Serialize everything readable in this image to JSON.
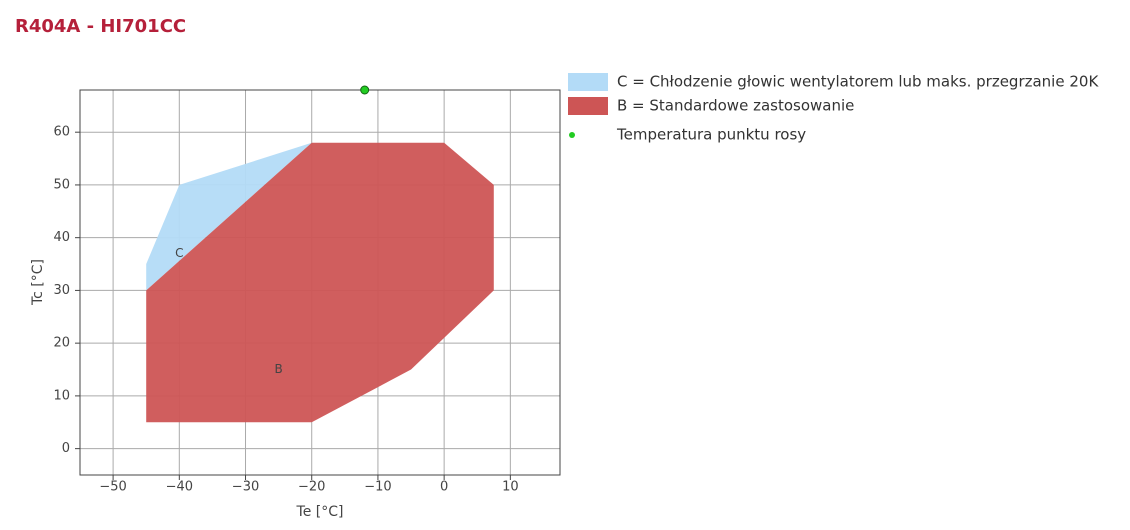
{
  "chart_data": {
    "type": "area",
    "title": "R404A - HI701CC",
    "x_label": "Te [°C]",
    "y_label": "Tc [°C]",
    "xlim": [
      -55,
      17.5
    ],
    "ylim": [
      -5,
      68
    ],
    "xticks": [
      {
        "value": -50,
        "label": "−50"
      },
      {
        "value": -40,
        "label": "−40"
      },
      {
        "value": -30,
        "label": "−30"
      },
      {
        "value": -20,
        "label": "−20"
      },
      {
        "value": -10,
        "label": "−10"
      },
      0,
      10
    ],
    "yticks": [
      0,
      10,
      20,
      30,
      40,
      50,
      60
    ],
    "grid": true,
    "legend": "right",
    "series": [
      {
        "name": "C = Chłodzenie głowic wentylatorem lub maks. przegrzanie 20K",
        "type": "area",
        "color": "#b3dbf7",
        "x": [
          -45,
          -45,
          -40,
          -20
        ],
        "y": [
          30,
          35,
          50,
          58
        ]
      },
      {
        "name": "B = Standardowe zastosowanie",
        "type": "area",
        "color": "#cd5555",
        "x": [
          -45,
          -20,
          -5,
          7.5,
          7.5,
          0,
          -20,
          -45
        ],
        "y": [
          5,
          5,
          15,
          30,
          50,
          58,
          58,
          30
        ]
      },
      {
        "name": "Temperatura punktu rosy",
        "type": "scatter",
        "color": "#22cc22",
        "x": [
          -12
        ],
        "y": [
          68
        ]
      }
    ],
    "annotations": [
      {
        "text": "C",
        "x": -40,
        "y": 37
      },
      {
        "text": "B",
        "x": -25,
        "y": 15
      }
    ]
  }
}
